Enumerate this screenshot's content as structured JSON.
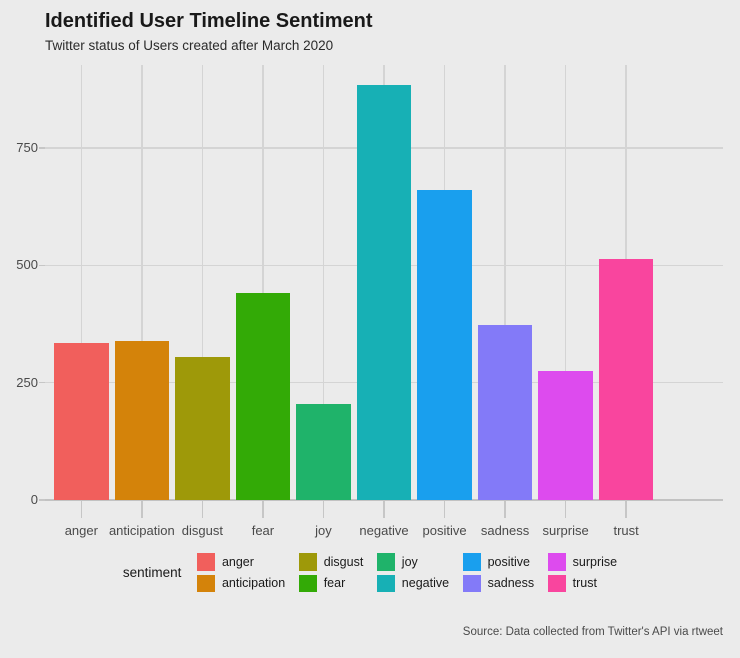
{
  "title": "Identified User Timeline Sentiment",
  "subtitle": "Twitter status of Users created after March 2020",
  "caption": "Source: Data collected from Twitter's API via rtweet",
  "legend": {
    "title": "sentiment",
    "entries": [
      {
        "label": "anger",
        "color": "#F15F5C"
      },
      {
        "label": "anticipation",
        "color": "#D4830A"
      },
      {
        "label": "disgust",
        "color": "#9E9909"
      },
      {
        "label": "fear",
        "color": "#33AA06"
      },
      {
        "label": "joy",
        "color": "#1FB36A"
      },
      {
        "label": "negative",
        "color": "#17B0B5"
      },
      {
        "label": "positive",
        "color": "#199FEE"
      },
      {
        "label": "sadness",
        "color": "#837AF8"
      },
      {
        "label": "surprise",
        "color": "#DD4BEE"
      },
      {
        "label": "trust",
        "color": "#F9459E"
      }
    ]
  },
  "chart_data": {
    "type": "bar",
    "title": "Identified User Timeline Sentiment",
    "subtitle": "Twitter status of Users created after March 2020",
    "caption": "Source: Data collected from Twitter's API via rtweet",
    "xlabel": "",
    "ylabel": "",
    "categories": [
      "anger",
      "anticipation",
      "disgust",
      "fear",
      "joy",
      "negative",
      "positive",
      "sadness",
      "surprise",
      "trust"
    ],
    "values": [
      334,
      339,
      305,
      440,
      204,
      884,
      660,
      373,
      274,
      513
    ],
    "colors": [
      "#F15F5C",
      "#D4830A",
      "#9E9909",
      "#33AA06",
      "#1FB36A",
      "#17B0B5",
      "#199FEE",
      "#837AF8",
      "#DD4BEE",
      "#F9459E"
    ],
    "yticks": [
      0,
      250,
      500,
      750
    ],
    "ylim": [
      0,
      927
    ],
    "grid": true,
    "legend_title": "sentiment",
    "legend_position": "bottom"
  },
  "colors": {
    "background": "#EBEBEB",
    "grid": "#D4D4D4",
    "axis_line": "#C2C2C2",
    "tick": "#C6C6C6",
    "tick_label": "#4A4A4A",
    "title_text": "#191919",
    "subtitle_text": "#2B2B2B",
    "caption_text": "#4A4A4A"
  }
}
